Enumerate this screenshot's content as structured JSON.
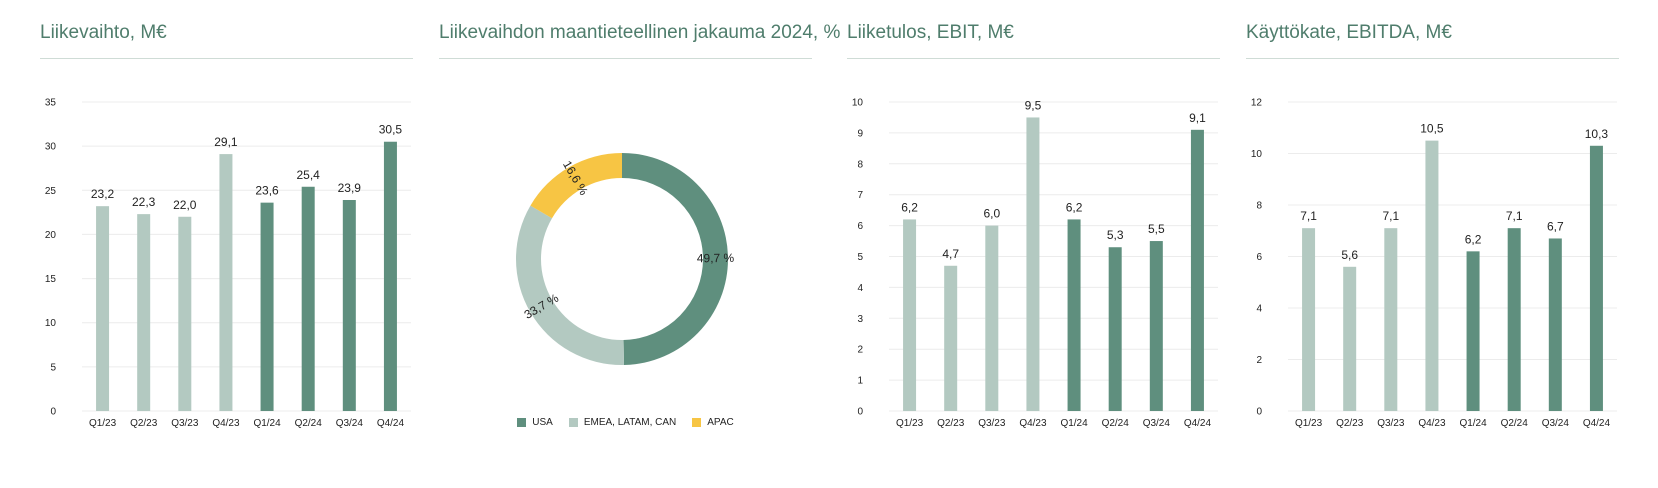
{
  "colors": {
    "light": "#b3c9c1",
    "dark": "#5f8f7e",
    "accent": "#f7c544",
    "grid": "#ececec"
  },
  "chart_data": [
    {
      "type": "bar",
      "title": "Liikevaihto, M€",
      "categories": [
        "Q1/23",
        "Q2/23",
        "Q3/23",
        "Q4/23",
        "Q1/24",
        "Q2/24",
        "Q3/24",
        "Q4/24"
      ],
      "values": [
        23.2,
        22.3,
        22.0,
        29.1,
        23.6,
        25.4,
        23.9,
        30.5
      ],
      "data_labels": [
        "23,2",
        "22,3",
        "22,0",
        "29,1",
        "23,6",
        "25,4",
        "23,9",
        "30,5"
      ],
      "yticks": [
        "0",
        "5",
        "10",
        "15",
        "20",
        "25",
        "30",
        "35"
      ],
      "ylim": [
        0,
        35
      ]
    },
    {
      "type": "pie",
      "title": "Liikevaihdon maantieteellinen jakauma 2024, %",
      "slices": [
        {
          "name": "USA",
          "value": 49.7,
          "label": "49,7 %",
          "color": "#5f8f7e"
        },
        {
          "name": "EMEA, LATAM, CAN",
          "value": 33.7,
          "label": "33,7 %",
          "color": "#b3c9c1"
        },
        {
          "name": "APAC",
          "value": 16.6,
          "label": "16,6 %",
          "color": "#f7c544"
        }
      ],
      "legend_position": "bottom"
    },
    {
      "type": "bar",
      "title": "Liiketulos, EBIT, M€",
      "categories": [
        "Q1/23",
        "Q2/23",
        "Q3/23",
        "Q4/23",
        "Q1/24",
        "Q2/24",
        "Q3/24",
        "Q4/24"
      ],
      "values": [
        6.2,
        4.7,
        6.0,
        9.5,
        6.2,
        5.3,
        5.5,
        9.1
      ],
      "data_labels": [
        "6,2",
        "4,7",
        "6,0",
        "9,5",
        "6,2",
        "5,3",
        "5,5",
        "9,1"
      ],
      "yticks": [
        "0",
        "1",
        "2",
        "3",
        "4",
        "5",
        "6",
        "7",
        "8",
        "9",
        "10"
      ],
      "ylim": [
        0,
        10
      ]
    },
    {
      "type": "bar",
      "title": "Käyttökate, EBITDA, M€",
      "categories": [
        "Q1/23",
        "Q2/23",
        "Q3/23",
        "Q4/23",
        "Q1/24",
        "Q2/24",
        "Q3/24",
        "Q4/24"
      ],
      "values": [
        7.1,
        5.6,
        7.1,
        10.5,
        6.2,
        7.1,
        6.7,
        10.3
      ],
      "data_labels": [
        "7,1",
        "5,6",
        "7,1",
        "10,5",
        "6,2",
        "7,1",
        "6,7",
        "10,3"
      ],
      "yticks": [
        "0",
        "2",
        "4",
        "6",
        "8",
        "10",
        "12"
      ],
      "ylim": [
        0,
        12
      ]
    }
  ]
}
